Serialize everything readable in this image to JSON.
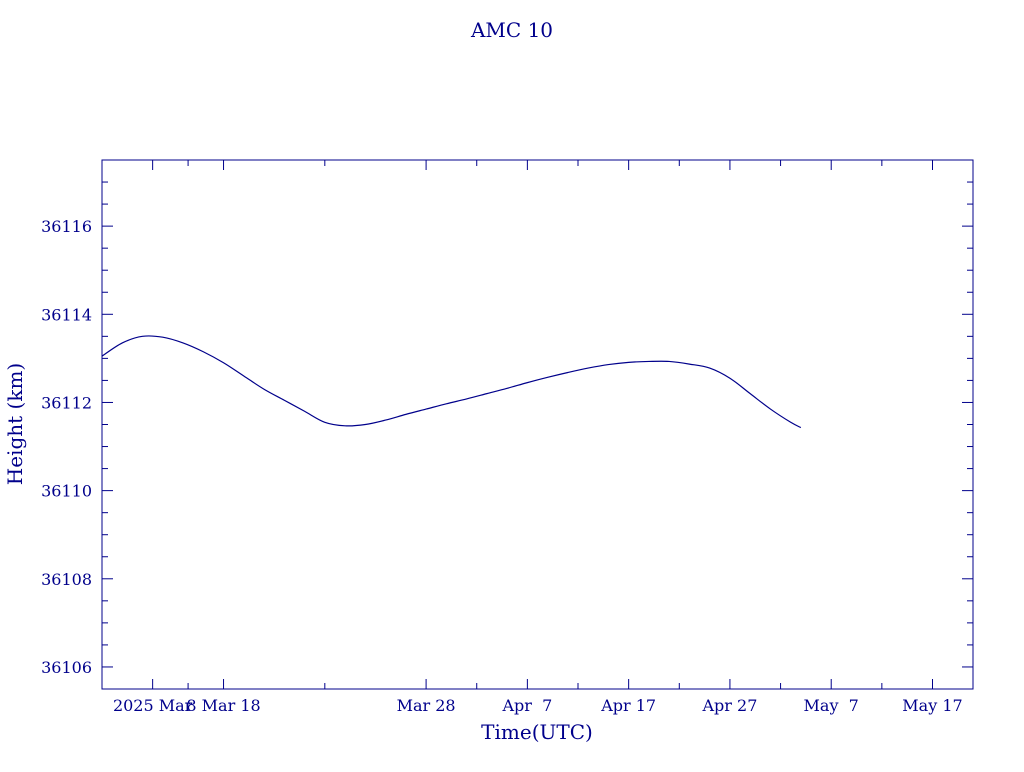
{
  "colors": {
    "ink": "#00008b",
    "background": "#ffffff"
  },
  "chart_data": {
    "type": "line",
    "title": "AMC 10",
    "xlabel": "Time(UTC)",
    "ylabel": "Height (km)",
    "x_axis_kind": "date",
    "xlim": [
      "2025-02-24",
      "2025-05-21"
    ],
    "ylim": [
      36105.5,
      36117.5
    ],
    "x_ticks": [
      {
        "date": "2025-03-01",
        "label": "2025 Mar"
      },
      {
        "date": "2025-03-08",
        "label": "8 Mar 18"
      },
      {
        "date": "2025-03-28",
        "label": "Mar 28"
      },
      {
        "date": "2025-04-07",
        "label": "Apr  7"
      },
      {
        "date": "2025-04-17",
        "label": "Apr 17"
      },
      {
        "date": "2025-04-27",
        "label": "Apr 27"
      },
      {
        "date": "2025-05-07",
        "label": "May  7"
      },
      {
        "date": "2025-05-17",
        "label": "May 17"
      }
    ],
    "y_ticks": [
      36106,
      36108,
      36110,
      36112,
      36114,
      36116
    ],
    "grid": false,
    "legend": "none",
    "series": [
      {
        "x": [
          "2025-02-24",
          "2025-02-26",
          "2025-02-28",
          "2025-03-02",
          "2025-03-04",
          "2025-03-06",
          "2025-03-08",
          "2025-03-10",
          "2025-03-12",
          "2025-03-14",
          "2025-03-16",
          "2025-03-18",
          "2025-03-20",
          "2025-03-22",
          "2025-03-24",
          "2025-03-26",
          "2025-03-28",
          "2025-03-30",
          "2025-04-01",
          "2025-04-03",
          "2025-04-05",
          "2025-04-07",
          "2025-04-09",
          "2025-04-11",
          "2025-04-13",
          "2025-04-15",
          "2025-04-17",
          "2025-04-19",
          "2025-04-21",
          "2025-04-23",
          "2025-04-25",
          "2025-04-27",
          "2025-04-29",
          "2025-05-01",
          "2025-05-03",
          "2025-05-04"
        ],
        "y": [
          36113.05,
          36113.35,
          36113.5,
          36113.48,
          36113.35,
          36113.15,
          36112.9,
          36112.6,
          36112.3,
          36112.05,
          36111.8,
          36111.55,
          36111.47,
          36111.5,
          36111.6,
          36111.73,
          36111.85,
          36111.97,
          36112.08,
          36112.2,
          36112.32,
          36112.45,
          36112.57,
          36112.68,
          36112.78,
          36112.86,
          36112.91,
          36112.93,
          36112.93,
          36112.87,
          36112.78,
          36112.55,
          36112.2,
          36111.85,
          36111.55,
          36111.43
        ]
      }
    ]
  }
}
